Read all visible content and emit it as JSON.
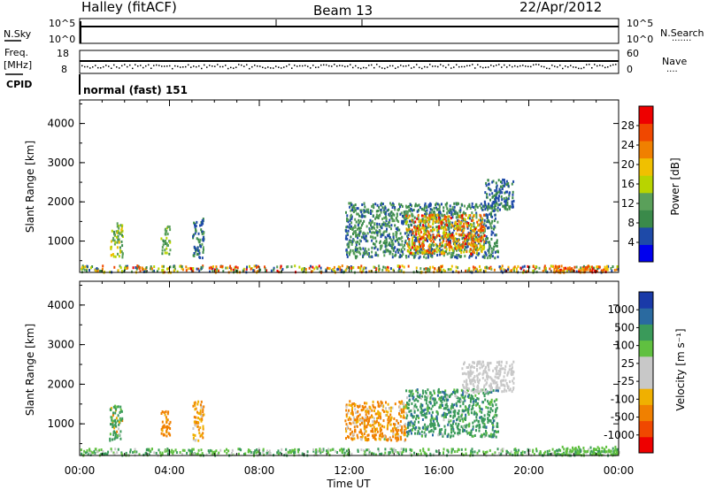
{
  "header": {
    "station": "Halley (fitACF)",
    "beam": "Beam 13",
    "date": "22/Apr/2012"
  },
  "side_labels": {
    "nsky": "N.Sky",
    "nsearch": "N.Search",
    "nsearch_mark": "·······",
    "freq": "Freq.",
    "mhz": "[MHz]",
    "nave": "Nave",
    "nave_mark": "····",
    "cpid": "CPID"
  },
  "small_panels": {
    "noise_ticks_left": [
      "10^5",
      "10^0"
    ],
    "noise_ticks_right": [
      "10^5",
      "10^0"
    ],
    "freq_ticks": [
      "18",
      "8"
    ],
    "nave_ticks": [
      "60",
      "0"
    ],
    "cpid_text": "normal (fast) 151"
  },
  "colors": {
    "power_scale": [
      "#0000ee",
      "#1e4aa8",
      "#3a8a4a",
      "#5aa05a",
      "#b8d400",
      "#f0c000",
      "#f08000",
      "#f04800",
      "#ee0000"
    ],
    "velocity_scale": [
      "#ee0000",
      "#f04800",
      "#f08000",
      "#f0b000",
      "#c8c8c8",
      "#c8c8c8",
      "#60c040",
      "#3a9a5a",
      "#2a6aa0",
      "#1a3aa8"
    ]
  },
  "chart_data": [
    {
      "type": "heatmap",
      "name": "power",
      "xlabel": "",
      "ylabel": "Slant Range [km]",
      "ylim": [
        200,
        4600
      ],
      "xlim_hours": [
        0,
        24
      ],
      "y_ticks": [
        "1000",
        "2000",
        "3000",
        "4000"
      ],
      "x_ticks": [
        "00:00",
        "04:00",
        "08:00",
        "12:00",
        "16:00",
        "20:00",
        "00:00"
      ],
      "colorbar": {
        "label": "Power [dB]",
        "ticks": [
          "4",
          "8",
          "12",
          "16",
          "20",
          "24",
          "28"
        ],
        "range": [
          0,
          32
        ]
      },
      "regions": [
        {
          "t0": 0.0,
          "t1": 24.0,
          "r0": 230,
          "r1": 400,
          "level": [
            4,
            30
          ]
        },
        {
          "t0": 1.3,
          "t1": 1.9,
          "r0": 600,
          "r1": 1500,
          "level": [
            8,
            20
          ]
        },
        {
          "t0": 3.6,
          "t1": 4.0,
          "r0": 700,
          "r1": 1400,
          "level": [
            8,
            16
          ]
        },
        {
          "t0": 5.0,
          "t1": 5.5,
          "r0": 600,
          "r1": 1600,
          "level": [
            4,
            12
          ]
        },
        {
          "t0": 11.8,
          "t1": 18.6,
          "r0": 600,
          "r1": 2000,
          "level": [
            4,
            14
          ]
        },
        {
          "t0": 14.5,
          "t1": 18.0,
          "r0": 700,
          "r1": 1700,
          "level": [
            14,
            30
          ]
        },
        {
          "t0": 18.0,
          "t1": 19.3,
          "r0": 1800,
          "r1": 2600,
          "level": [
            4,
            10
          ]
        },
        {
          "t0": 21.0,
          "t1": 23.5,
          "r0": 230,
          "r1": 400,
          "level": [
            18,
            32
          ]
        }
      ]
    },
    {
      "type": "heatmap",
      "name": "velocity",
      "xlabel": "Time UT",
      "ylabel": "Slant Range [km]",
      "ylim": [
        200,
        4600
      ],
      "xlim_hours": [
        0,
        24
      ],
      "y_ticks": [
        "1000",
        "2000",
        "3000",
        "4000"
      ],
      "x_ticks": [
        "00:00",
        "04:00",
        "08:00",
        "12:00",
        "16:00",
        "20:00",
        "00:00"
      ],
      "colorbar": {
        "label": "Velocity [m s⁻¹]",
        "ticks": [
          "-1000",
          "-500",
          "-100",
          "-25",
          "25",
          "100",
          "500",
          "1000"
        ]
      },
      "regions": [
        {
          "t0": 0.0,
          "t1": 24.0,
          "r0": 230,
          "r1": 400,
          "vel": [
            0,
            150
          ]
        },
        {
          "t0": 1.3,
          "t1": 1.9,
          "r0": 600,
          "r1": 1500,
          "vel": [
            -200,
            500
          ]
        },
        {
          "t0": 3.6,
          "t1": 4.0,
          "r0": 700,
          "r1": 1400,
          "vel": [
            -300,
            -80
          ]
        },
        {
          "t0": 5.0,
          "t1": 5.5,
          "r0": 600,
          "r1": 1600,
          "vel": [
            -200,
            30
          ]
        },
        {
          "t0": 11.8,
          "t1": 14.5,
          "r0": 600,
          "r1": 1600,
          "vel": [
            -300,
            30
          ]
        },
        {
          "t0": 14.5,
          "t1": 18.6,
          "r0": 700,
          "r1": 1900,
          "vel": [
            0,
            600
          ]
        },
        {
          "t0": 17.0,
          "t1": 19.3,
          "r0": 1800,
          "r1": 2600,
          "vel": [
            -20,
            20
          ]
        },
        {
          "t0": 21.0,
          "t1": 24.0,
          "r0": 230,
          "r1": 450,
          "vel": [
            25,
            120
          ]
        }
      ]
    }
  ]
}
